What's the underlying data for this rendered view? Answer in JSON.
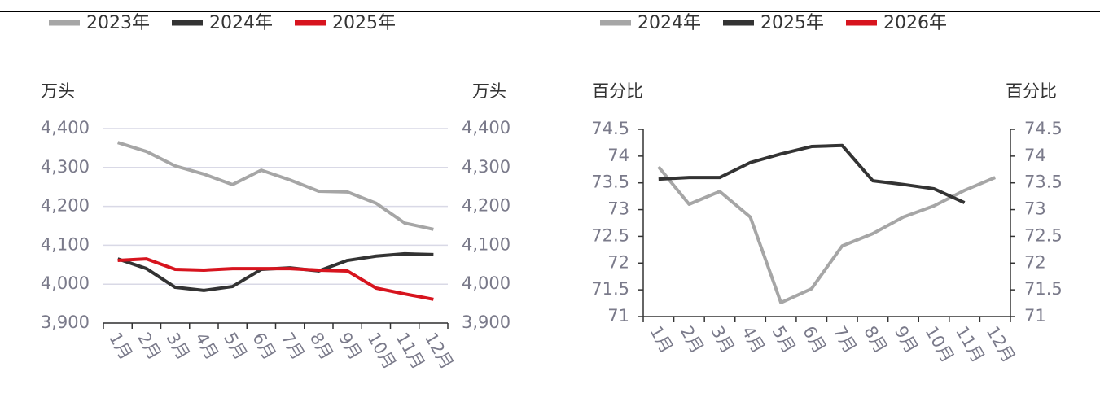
{
  "chart_data": [
    {
      "type": "line",
      "ylabel": "万头",
      "categories": [
        "1月",
        "2月",
        "3月",
        "4月",
        "5月",
        "6月",
        "7月",
        "8月",
        "9月",
        "10月",
        "11月",
        "12月"
      ],
      "series": [
        {
          "name": "2023年",
          "color": "#a6a6a6",
          "values": [
            4364,
            4341,
            4304,
            4283,
            4256,
            4293,
            4268,
            4239,
            4237,
            4208,
            4157,
            4141
          ]
        },
        {
          "name": "2024年",
          "color": "#333333",
          "values": [
            4065,
            4040,
            3992,
            3984,
            3994,
            4038,
            4042,
            4034,
            4061,
            4072,
            4078,
            4076
          ]
        },
        {
          "name": "2025年",
          "color": "#d7141e",
          "values": [
            4061,
            4065,
            4038,
            4036,
            4040,
            4040,
            4040,
            4036,
            4034,
            3990,
            3975,
            3961
          ]
        }
      ],
      "ylim": [
        3900,
        4400
      ],
      "yticks": [
        {
          "value": 3900,
          "label": "3,900"
        },
        {
          "value": 4000,
          "label": "4,000"
        },
        {
          "value": 4100,
          "label": "4,100"
        },
        {
          "value": 4200,
          "label": "4,200"
        },
        {
          "value": 4300,
          "label": "4,300"
        },
        {
          "value": 4400,
          "label": "4,400"
        }
      ],
      "grid": true
    },
    {
      "type": "line",
      "ylabel": "百分比",
      "categories": [
        "1月",
        "2月",
        "3月",
        "4月",
        "5月",
        "6月",
        "7月",
        "8月",
        "9月",
        "10月",
        "11月",
        "12月"
      ],
      "series": [
        {
          "name": "2024年",
          "color": "#a6a6a6",
          "values": [
            73.8,
            73.1,
            73.34,
            72.86,
            71.26,
            71.52,
            72.32,
            72.55,
            72.86,
            73.07,
            73.36,
            73.6
          ]
        },
        {
          "name": "2025年",
          "color": "#333333",
          "values": [
            73.57,
            73.6,
            73.6,
            73.88,
            74.04,
            74.18,
            74.2,
            73.54,
            73.47,
            73.39,
            73.13,
            null
          ]
        },
        {
          "name": "2026年",
          "color": "#d7141e",
          "values": [
            null,
            null,
            null,
            null,
            null,
            null,
            null,
            null,
            null,
            null,
            null,
            null
          ]
        }
      ],
      "ylim": [
        71,
        74.5
      ],
      "yticks": [
        71,
        71.5,
        72,
        72.5,
        73,
        73.5,
        74,
        74.5
      ],
      "grid": false
    }
  ]
}
